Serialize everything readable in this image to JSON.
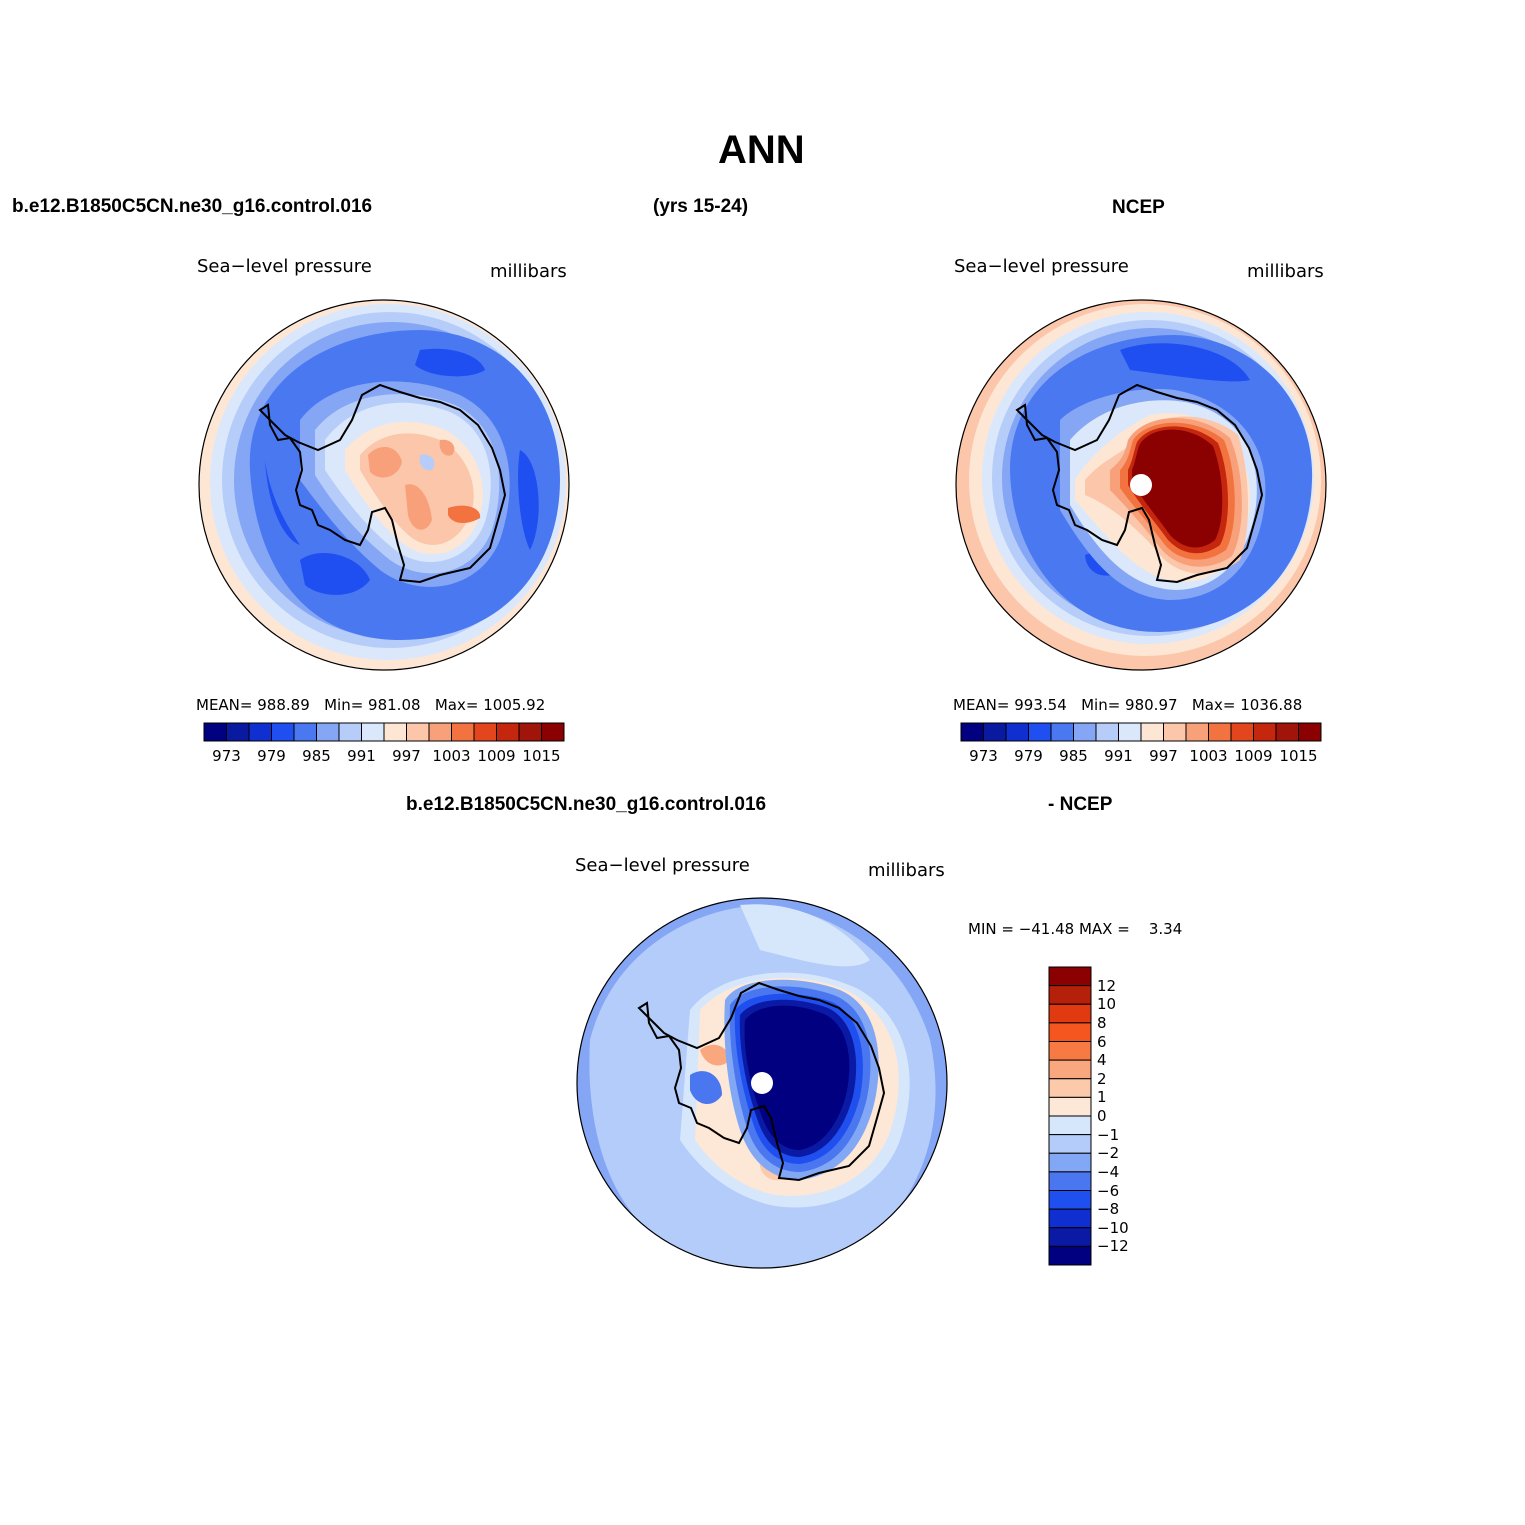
{
  "title": "ANN",
  "header": {
    "case_name": "b.e12.B1850C5CN.ne30_g16.control.016",
    "years": "(yrs 15-24)",
    "obs_name": "NCEP"
  },
  "panels": {
    "model": {
      "variable": "Sea−level pressure",
      "units": "millibars",
      "mean_label": "MEAN=",
      "mean": "988.89",
      "min_label": "Min=",
      "min": "981.08",
      "max_label": "Max=",
      "max": "1005.92"
    },
    "obs": {
      "variable": "Sea−level pressure",
      "units": "millibars",
      "mean_label": "MEAN=",
      "mean": "993.54",
      "min_label": "Min=",
      "min": "980.97",
      "max_label": "Max=",
      "max": "1036.88"
    },
    "diff": {
      "case_name": "b.e12.B1850C5CN.ne30_g16.control.016",
      "obs_name": "- NCEP",
      "variable": "Sea−level pressure",
      "units": "millibars",
      "minmax": "MIN = −41.48 MAX =    3.34"
    }
  },
  "colorbar_abs": {
    "tick_labels": [
      "973",
      "979",
      "985",
      "991",
      "997",
      "1003",
      "1009",
      "1015"
    ],
    "colors": [
      "#000080",
      "#0a1aa0",
      "#0f2fd0",
      "#1f4ff0",
      "#4a78f0",
      "#84a6f5",
      "#b7cdf9",
      "#dbe8fc",
      "#fde6d4",
      "#fbc6aa",
      "#f8a07a",
      "#f2733f",
      "#e3451c",
      "#c4260e",
      "#a0140a",
      "#8b0000"
    ]
  },
  "colorbar_diff": {
    "tick_labels": [
      "12",
      "10",
      "8",
      "6",
      "4",
      "2",
      "1",
      "0",
      "−1",
      "−2",
      "−4",
      "−6",
      "−8",
      "−10",
      "−12"
    ],
    "colors": [
      "#8b0000",
      "#b5200a",
      "#e13a10",
      "#f5551e",
      "#f77a45",
      "#f9a77e",
      "#fcc9ab",
      "#fde7d6",
      "#d6e6fb",
      "#b3ccf9",
      "#82a8f5",
      "#4a76f0",
      "#1f4fef",
      "#0f2fd0",
      "#0a1aa5",
      "#000080"
    ]
  }
}
